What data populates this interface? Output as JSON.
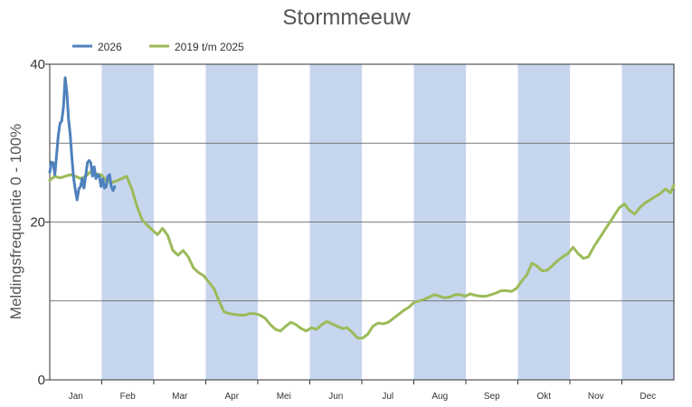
{
  "chart_data": {
    "type": "line",
    "title": "Stormmeeuw",
    "ylabel": "Meldingsfrequentie 0 - 100%",
    "xlabel": "",
    "ylim": [
      0,
      40
    ],
    "yticks": [
      0,
      20,
      40
    ],
    "grid": {
      "horizontal": [
        10,
        20,
        30
      ],
      "vertical_month_bands": true
    },
    "legend_position": "top-left",
    "month_labels": [
      "Jan",
      "Feb",
      "Mar",
      "Apr",
      "Mei",
      "Jun",
      "Jul",
      "Aug",
      "Sep",
      "Okt",
      "Nov",
      "Dec"
    ],
    "month_bands": [
      1,
      3,
      5,
      7,
      9,
      11
    ],
    "x_unit": "day of year",
    "xlim": [
      1,
      366
    ],
    "series": [
      {
        "name": "2026",
        "color": "#4f81bd",
        "x": [
          1,
          2,
          3,
          4,
          5,
          6,
          7,
          8,
          9,
          10,
          11,
          12,
          13,
          14,
          15,
          16,
          17,
          18,
          19,
          20,
          21,
          22,
          23,
          24,
          25,
          26,
          27,
          28,
          29,
          30,
          31,
          32,
          33,
          34,
          35,
          36,
          37,
          38,
          39
        ],
        "values": [
          26.3,
          27.6,
          27.5,
          26.0,
          28.5,
          31.0,
          32.5,
          32.8,
          34.5,
          38.3,
          36.5,
          33.0,
          31.0,
          28.0,
          25.5,
          24.0,
          22.8,
          24.2,
          24.5,
          25.5,
          24.3,
          25.8,
          27.5,
          27.8,
          27.5,
          25.8,
          27.0,
          25.5,
          26.0,
          25.8,
          24.5,
          25.5,
          24.3,
          24.5,
          25.8,
          26.0,
          24.5,
          24.0,
          24.5
        ]
      },
      {
        "name": "2019 t/m 2025",
        "color": "#9bbb59",
        "x": [
          1,
          4,
          7,
          10,
          13,
          16,
          19,
          22,
          25,
          28,
          31,
          34,
          37,
          40,
          43,
          46,
          49,
          52,
          55,
          58,
          61,
          64,
          67,
          70,
          73,
          76,
          79,
          82,
          85,
          88,
          91,
          94,
          97,
          100,
          103,
          106,
          109,
          112,
          115,
          118,
          121,
          124,
          127,
          130,
          133,
          136,
          139,
          142,
          145,
          148,
          151,
          154,
          157,
          160,
          163,
          166,
          169,
          172,
          175,
          178,
          181,
          184,
          187,
          190,
          193,
          196,
          199,
          202,
          205,
          208,
          211,
          214,
          217,
          220,
          223,
          226,
          229,
          232,
          235,
          238,
          241,
          244,
          247,
          250,
          253,
          256,
          259,
          262,
          265,
          268,
          271,
          274,
          277,
          280,
          283,
          286,
          289,
          292,
          295,
          298,
          301,
          304,
          307,
          310,
          313,
          316,
          319,
          322,
          325,
          328,
          331,
          334,
          337,
          340,
          343,
          346,
          349,
          352,
          355,
          358,
          361,
          364,
          366
        ],
        "values": [
          25.3,
          25.8,
          25.6,
          25.8,
          26.0,
          25.8,
          25.5,
          25.8,
          26.4,
          26.1,
          26.0,
          25.3,
          25.0,
          25.2,
          25.5,
          25.8,
          24.2,
          22.0,
          20.3,
          19.6,
          19.0,
          18.4,
          19.2,
          18.3,
          16.4,
          15.8,
          16.4,
          15.6,
          14.2,
          13.6,
          13.2,
          12.4,
          11.6,
          10.0,
          8.6,
          8.4,
          8.3,
          8.2,
          8.2,
          8.4,
          8.4,
          8.2,
          7.8,
          7.0,
          6.4,
          6.2,
          6.8,
          7.3,
          7.0,
          6.5,
          6.2,
          6.6,
          6.4,
          7.0,
          7.4,
          7.1,
          6.8,
          6.5,
          6.6,
          6.0,
          5.3,
          5.3,
          5.8,
          6.8,
          7.2,
          7.1,
          7.3,
          7.8,
          8.3,
          8.8,
          9.2,
          9.8,
          10.0,
          10.2,
          10.5,
          10.8,
          10.6,
          10.4,
          10.5,
          10.8,
          10.8,
          10.6,
          10.9,
          10.7,
          10.6,
          10.6,
          10.8,
          11.0,
          11.3,
          11.3,
          11.2,
          11.6,
          12.5,
          13.3,
          14.8,
          14.4,
          13.8,
          13.9,
          14.5,
          15.1,
          15.6,
          16.0,
          16.8,
          16.0,
          15.4,
          15.6,
          16.8,
          17.8,
          18.8,
          19.8,
          20.8,
          21.8,
          22.3,
          21.5,
          21.0,
          21.8,
          22.4,
          22.8,
          23.2,
          23.6,
          24.2,
          23.7,
          24.7
        ]
      }
    ]
  }
}
